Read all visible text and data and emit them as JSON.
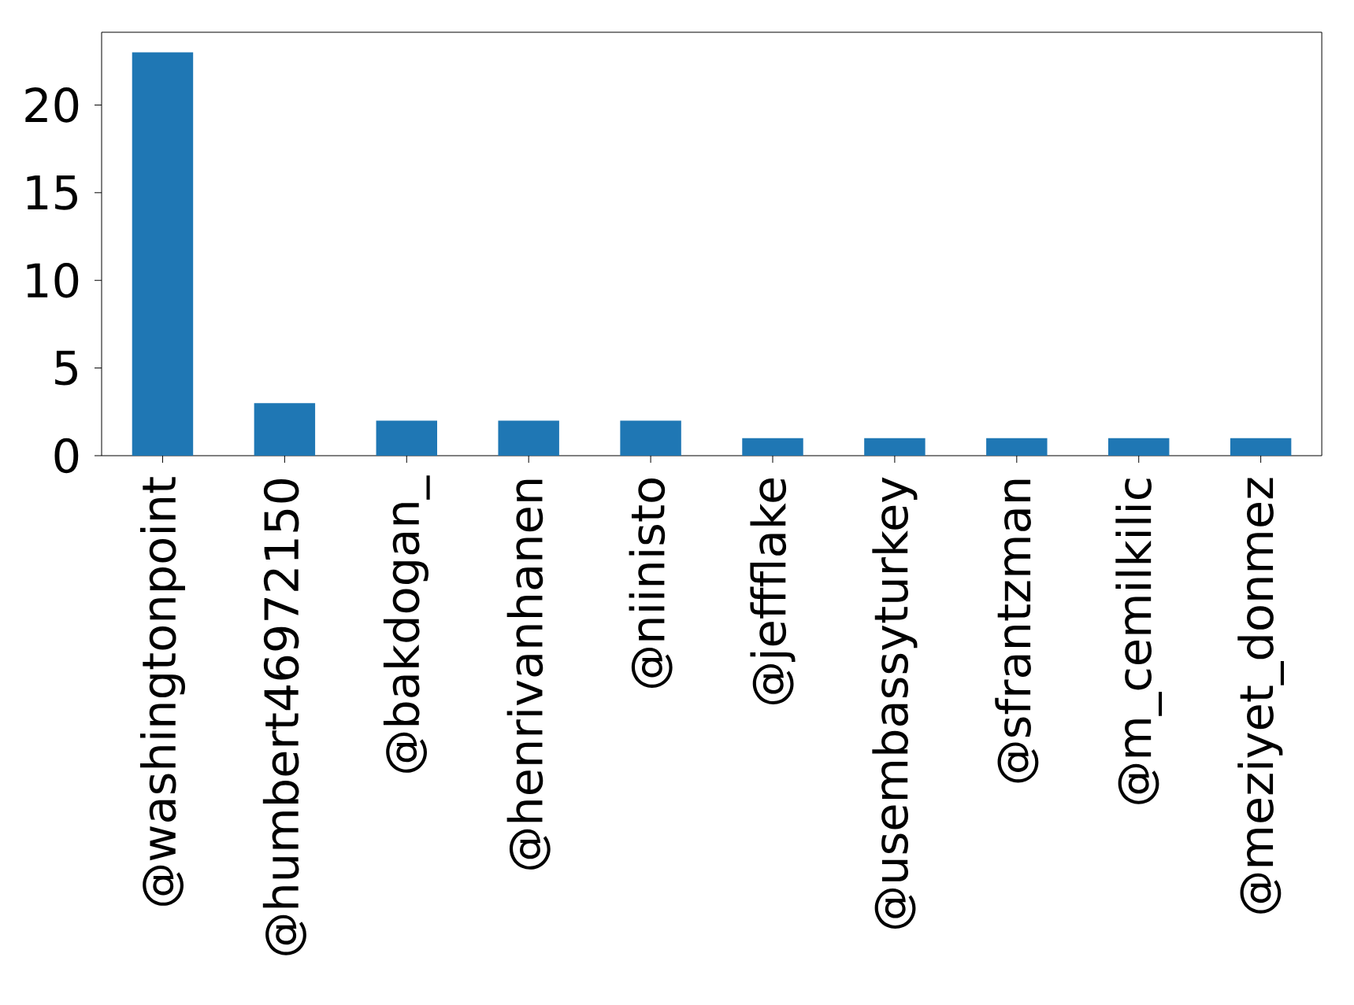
{
  "chart_data": {
    "type": "bar",
    "categories": [
      "@washingtonpoint",
      "@humbert46972150",
      "@bakdogan_",
      "@henrivanhanen",
      "@niinisto",
      "@jeffflake",
      "@usembassyturkey",
      "@sfrantzman",
      "@m_cemilkilic",
      "@meziyet_donmez"
    ],
    "values": [
      23,
      3,
      2,
      2,
      2,
      1,
      1,
      1,
      1,
      1
    ],
    "color": "#1f77b4",
    "ylim": [
      0,
      24.15
    ],
    "yticks": [
      0,
      5,
      10,
      15,
      20
    ],
    "grid": false
  }
}
